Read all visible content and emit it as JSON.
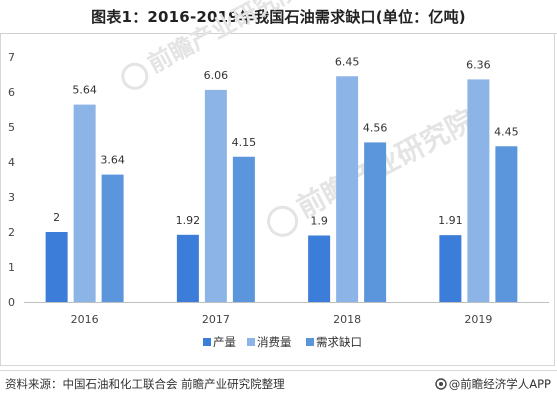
{
  "header": {
    "title": "图表1：2016-2019年我国石油需求缺口(单位：亿吨)"
  },
  "watermark": {
    "text": "前瞻产业研究院"
  },
  "footer": {
    "source": "资料来源：中国石油和化工联合会 前瞻产业研究院整理",
    "credit": "@前瞻经济学人APP"
  },
  "chart_data": {
    "type": "bar",
    "categories": [
      "2016",
      "2017",
      "2018",
      "2019"
    ],
    "series": [
      {
        "name": "产量",
        "values": [
          2,
          1.92,
          1.9,
          1.91
        ],
        "color": "#3b7dd8"
      },
      {
        "name": "消费量",
        "values": [
          5.64,
          6.06,
          6.45,
          6.36
        ],
        "color": "#8db4e6"
      },
      {
        "name": "需求缺口",
        "values": [
          3.64,
          4.15,
          4.56,
          4.45
        ],
        "color": "#5b96dc"
      }
    ],
    "title": "图表1：2016-2019年我国石油需求缺口(单位：亿吨)",
    "xlabel": "",
    "ylabel": "",
    "ylim": [
      0,
      7
    ],
    "yticks": [
      "0",
      "1",
      "2",
      "3",
      "4",
      "5",
      "6",
      "7"
    ],
    "data_labels": [
      [
        "2",
        "1.92",
        "1.9",
        "1.91"
      ],
      [
        "5.64",
        "6.06",
        "6.45",
        "6.36"
      ],
      [
        "3.64",
        "4.15",
        "4.56",
        "4.45"
      ]
    ],
    "grid": false,
    "legend": "bottom"
  }
}
